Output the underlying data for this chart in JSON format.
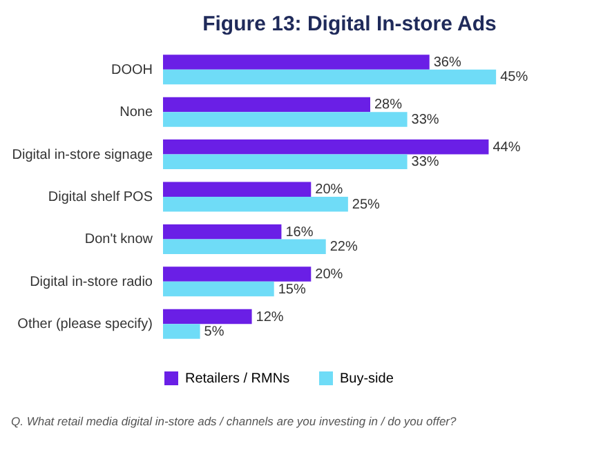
{
  "chart_data": {
    "type": "bar",
    "orientation": "horizontal",
    "title": "Figure 13: Digital In-store Ads",
    "categories": [
      "DOOH",
      "None",
      "Digital in-store signage",
      "Digital shelf POS",
      "Don't know",
      "Digital in-store radio",
      "Other (please specify)"
    ],
    "series": [
      {
        "name": "Retailers / RMNs",
        "color": "#6a1fe6",
        "values": [
          36,
          28,
          44,
          20,
          16,
          20,
          12
        ],
        "value_labels": [
          "36%",
          "28%",
          "44%",
          "20%",
          "16%",
          "20%",
          "12%"
        ]
      },
      {
        "name": "Buy-side",
        "color": "#6fdcf7",
        "values": [
          45,
          33,
          33,
          25,
          22,
          15,
          5
        ],
        "value_labels": [
          "45%",
          "33%",
          "33%",
          "25%",
          "22%",
          "15%",
          "5%"
        ]
      }
    ],
    "legend": "bottom",
    "annotations": [
      "Q. What retail media digital in-store ads / channels are you investing in / do you offer?"
    ]
  }
}
